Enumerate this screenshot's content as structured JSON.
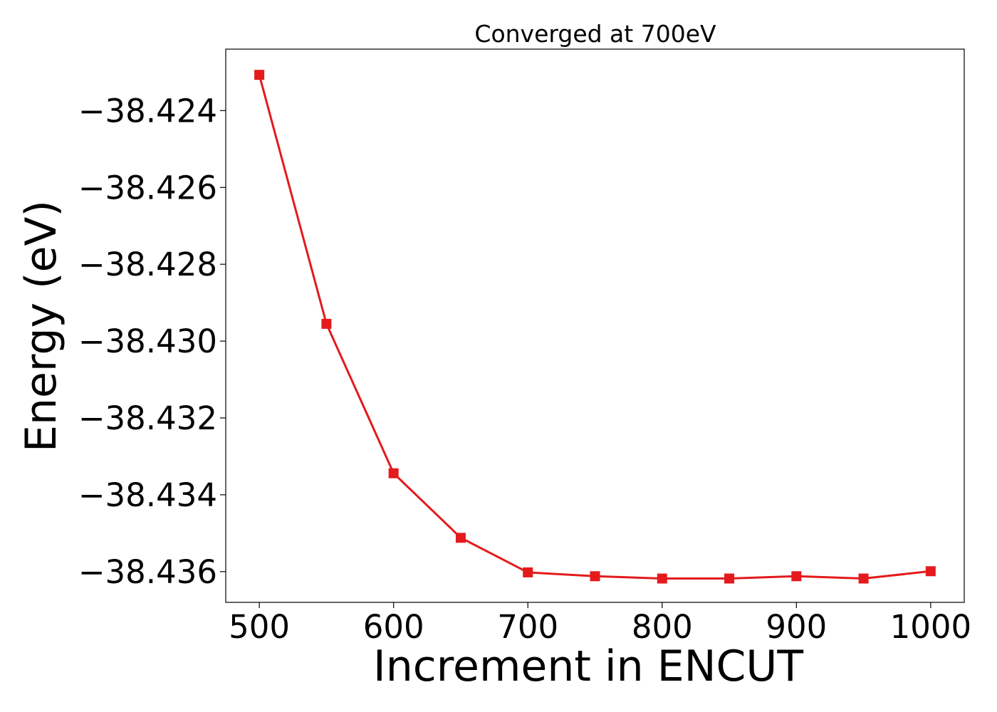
{
  "chart_data": {
    "type": "line",
    "title": "Converged at 700eV",
    "xlabel": "Increment in ENCUT",
    "ylabel": "Energy (eV)",
    "x": [
      500,
      550,
      600,
      650,
      700,
      750,
      800,
      850,
      900,
      950,
      1000
    ],
    "series": [
      {
        "values": [
          -38.42307,
          -38.42955,
          -38.43344,
          -38.43512,
          -38.43602,
          -38.43612,
          -38.43618,
          -38.43618,
          -38.43612,
          -38.43618,
          -38.43599
        ],
        "color": "#e41a1c",
        "marker": "square"
      }
    ],
    "xlim": [
      475,
      1025
    ],
    "ylim": [
      -38.4368,
      -38.4224
    ],
    "xticks": [
      500,
      600,
      700,
      800,
      900,
      1000
    ],
    "xtick_labels": [
      "500",
      "600",
      "700",
      "800",
      "900",
      "1000"
    ],
    "yticks": [
      -38.424,
      -38.426,
      -38.428,
      -38.43,
      -38.432,
      -38.434,
      -38.436
    ],
    "ytick_labels": [
      "−38.424",
      "−38.426",
      "−38.428",
      "−38.430",
      "−38.432",
      "−38.434",
      "−38.436"
    ],
    "grid": false,
    "legend": "none"
  }
}
